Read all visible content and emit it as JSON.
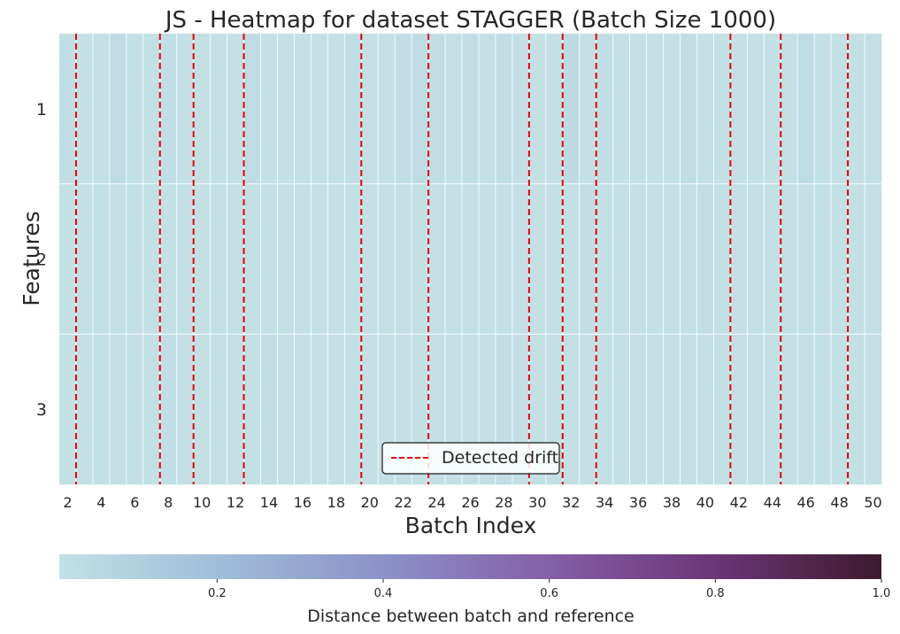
{
  "chart_data": {
    "type": "heatmap",
    "title": "JS - Heatmap for dataset STAGGER (Batch Size 1000)",
    "xlabel": "Batch Index",
    "ylabel": "Features",
    "x": [
      2,
      3,
      4,
      5,
      6,
      7,
      8,
      9,
      10,
      11,
      12,
      13,
      14,
      15,
      16,
      17,
      18,
      19,
      20,
      21,
      22,
      23,
      24,
      25,
      26,
      27,
      28,
      29,
      30,
      31,
      32,
      33,
      34,
      35,
      36,
      37,
      38,
      39,
      40,
      41,
      42,
      43,
      44,
      45,
      46,
      47,
      48,
      49,
      50
    ],
    "x_ticks": [
      2,
      4,
      6,
      8,
      10,
      12,
      14,
      16,
      18,
      20,
      22,
      24,
      26,
      28,
      30,
      32,
      34,
      36,
      38,
      40,
      42,
      44,
      46,
      48,
      50
    ],
    "y": [
      "1",
      "2",
      "3"
    ],
    "values": [
      [
        0.02,
        0.01,
        0.01,
        0.03,
        0.01,
        0.01,
        0.02,
        0.01,
        0.01,
        0.01,
        0.01,
        0.03,
        0.01,
        0.01,
        0.01,
        0.01,
        0.01,
        0.02,
        0.01,
        0.01,
        0.02,
        0.03,
        0.02,
        0.01,
        0.02,
        0.01,
        0.02,
        0.01,
        0.01,
        0.01,
        0.04,
        0.01,
        0.02,
        0.01,
        0.01,
        0.01,
        0.01,
        0.02,
        0.01,
        0.01,
        0.01,
        0.01,
        0.01,
        0.01,
        0.03,
        0.01,
        0.01,
        0.01,
        0.01
      ],
      [
        0.01,
        0.01,
        0.01,
        0.01,
        0.01,
        0.01,
        0.01,
        0.01,
        0.01,
        0.01,
        0.01,
        0.01,
        0.01,
        0.01,
        0.01,
        0.01,
        0.01,
        0.01,
        0.01,
        0.01,
        0.01,
        0.01,
        0.01,
        0.01,
        0.01,
        0.01,
        0.01,
        0.01,
        0.01,
        0.01,
        0.01,
        0.02,
        0.01,
        0.01,
        0.01,
        0.01,
        0.01,
        0.01,
        0.02,
        0.01,
        0.01,
        0.01,
        0.01,
        0.01,
        0.01,
        0.01,
        0.01,
        0.01,
        0.01
      ],
      [
        0.01,
        0.01,
        0.01,
        0.01,
        0.01,
        0.01,
        0.02,
        0.01,
        0.01,
        0.01,
        0.01,
        0.01,
        0.02,
        0.01,
        0.01,
        0.01,
        0.01,
        0.01,
        0.01,
        0.01,
        0.01,
        0.01,
        0.01,
        0.01,
        0.01,
        0.01,
        0.02,
        0.01,
        0.01,
        0.01,
        0.01,
        0.01,
        0.01,
        0.01,
        0.01,
        0.01,
        0.01,
        0.01,
        0.01,
        0.01,
        0.01,
        0.01,
        0.01,
        0.01,
        0.01,
        0.01,
        0.01,
        0.01,
        0.01
      ]
    ],
    "drift_batches": [
      3,
      8,
      10,
      13,
      20,
      24,
      30,
      32,
      34,
      42,
      45,
      49
    ],
    "legend": {
      "label": "Detected drift",
      "placement": "lower center"
    },
    "colorbar": {
      "label": "Distance between batch and reference",
      "range": [
        0.01,
        1.0
      ],
      "ticks": [
        0.2,
        0.4,
        0.6,
        0.8,
        1.0
      ],
      "tick_labels": [
        "0.2",
        "0.4",
        "0.6",
        "0.8",
        "1.0"
      ],
      "orientation": "horizontal",
      "colormap": [
        "#c3e0e5",
        "#9fbdd9",
        "#8c90c8",
        "#845ea6",
        "#6b3577",
        "#3c1a2c"
      ]
    },
    "grid": true,
    "colors": {
      "drift_line": "#e8000b",
      "grid": "#ffffff"
    }
  }
}
